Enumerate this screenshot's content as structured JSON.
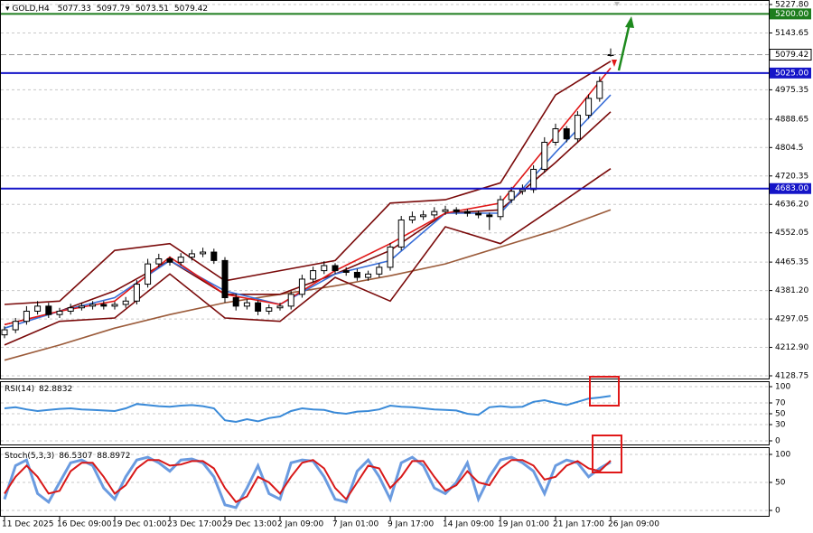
{
  "chart_data": {
    "type": "candlestick",
    "header": {
      "symbol": "GOLD,H4",
      "open": 5077.33,
      "high": 5097.79,
      "low": 5073.51,
      "close": 5079.42
    },
    "categories": [
      "11 Dec 2025",
      null,
      null,
      null,
      null,
      "16 Dec 09:00",
      null,
      null,
      null,
      null,
      "19 Dec 01:00",
      null,
      null,
      null,
      null,
      "23 Dec 17:00",
      null,
      null,
      null,
      null,
      "29 Dec 13:00",
      null,
      null,
      null,
      null,
      "2 Jan 09:00",
      null,
      null,
      null,
      null,
      "7 Jan 01:00",
      null,
      null,
      null,
      null,
      "9 Jan 17:00",
      null,
      null,
      null,
      null,
      "14 Jan 09:00",
      null,
      null,
      null,
      null,
      "19 Jan 01:00",
      null,
      null,
      null,
      null,
      "21 Jan 17:00",
      null,
      null,
      null,
      null,
      "26 Jan 09:00"
    ],
    "close": [
      4265,
      4290,
      4320,
      4335,
      4310,
      4320,
      4330,
      4335,
      4340,
      4335,
      4340,
      4350,
      4400,
      4460,
      4475,
      4465,
      4480,
      4490,
      4495,
      4470,
      4360,
      4335,
      4345,
      4320,
      4330,
      4335,
      4370,
      4415,
      4440,
      4455,
      4440,
      4435,
      4420,
      4430,
      4450,
      4510,
      4590,
      4600,
      4605,
      4615,
      4620,
      4615,
      4610,
      4605,
      4600,
      4650,
      4675,
      4680,
      4740,
      4820,
      4860,
      4830,
      4900,
      4950,
      5000,
      5079.42
    ],
    "open": [
      4250,
      4265,
      4290,
      4320,
      4335,
      4310,
      4320,
      4330,
      4335,
      4340,
      4335,
      4340,
      4350,
      4400,
      4460,
      4475,
      4465,
      4480,
      4490,
      4495,
      4470,
      4360,
      4335,
      4345,
      4320,
      4330,
      4335,
      4370,
      4415,
      4440,
      4455,
      4440,
      4435,
      4420,
      4430,
      4450,
      4510,
      4590,
      4600,
      4605,
      4615,
      4620,
      4615,
      4610,
      4605,
      4600,
      4650,
      4675,
      4680,
      4740,
      4820,
      4860,
      4830,
      4900,
      4950,
      5077.33
    ],
    "high": [
      4275,
      4300,
      4335,
      4350,
      4345,
      4330,
      4342,
      4345,
      4350,
      4350,
      4348,
      4362,
      4412,
      4475,
      4490,
      4482,
      4492,
      4502,
      4508,
      4505,
      4480,
      4372,
      4355,
      4352,
      4340,
      4345,
      4380,
      4428,
      4452,
      4468,
      4462,
      4450,
      4445,
      4440,
      4462,
      4522,
      4602,
      4615,
      4618,
      4628,
      4632,
      4628,
      4622,
      4618,
      4612,
      4662,
      4688,
      4695,
      4752,
      4835,
      4875,
      4868,
      4912,
      4962,
      5015,
      5097.79
    ],
    "low": [
      4240,
      4255,
      4280,
      4310,
      4300,
      4300,
      4310,
      4322,
      4325,
      4325,
      4325,
      4330,
      4340,
      4390,
      4450,
      4455,
      4455,
      4470,
      4480,
      4460,
      4345,
      4322,
      4325,
      4308,
      4310,
      4322,
      4325,
      4360,
      4405,
      4430,
      4430,
      4425,
      4410,
      4410,
      4420,
      4440,
      4500,
      4580,
      4590,
      4595,
      4605,
      4605,
      4600,
      4595,
      4560,
      4590,
      4640,
      4665,
      4670,
      4730,
      4810,
      4820,
      4820,
      4890,
      4940,
      5073.51
    ],
    "colors": {
      "up": "#ffffff",
      "down": "#000000",
      "wick": "#000000"
    },
    "ylim": [
      4128.75,
      5227.8
    ],
    "yticks": [
      {
        "value": 5227.8,
        "label": "5227.80"
      },
      5143.65,
      4975.35,
      4888.65,
      4804.5,
      4720.35,
      {
        "value": 4636.2,
        "label": "4636.20"
      },
      4552.05,
      4465.35,
      {
        "value": 4381.2,
        "label": "4381.20"
      },
      4297.05,
      {
        "value": 4212.9,
        "label": "4212.90"
      },
      4128.75
    ],
    "grid": true,
    "levels": [
      {
        "value": 5200,
        "label": "5200.00",
        "color": "#1e7d1e"
      },
      {
        "value": 5025,
        "label": "5025.00",
        "color": "#1515c8"
      },
      {
        "value": 4683,
        "label": "4683.00",
        "color": "#1515c8"
      }
    ],
    "indicators": {
      "x": [
        0,
        5,
        10,
        15,
        20,
        25,
        30,
        35,
        40,
        45,
        50,
        55
      ],
      "series": [
        {
          "color": "#9b5b3a",
          "values": [
            4175,
            4220,
            4270,
            4310,
            4345,
            4370,
            4395,
            4425,
            4460,
            4510,
            4560,
            4620
          ]
        },
        {
          "color": "#7a0a0a",
          "values": [
            4340,
            4350,
            4500,
            4520,
            4410,
            4440,
            4470,
            4640,
            4650,
            4700,
            4960,
            5060
          ]
        },
        {
          "color": "#7a0a0a",
          "values": [
            4220,
            4290,
            4300,
            4430,
            4300,
            4290,
            4420,
            4350,
            4570,
            4520,
            4630,
            4742
          ]
        },
        {
          "color": "#7a0a0a",
          "values": [
            4280,
            4320,
            4380,
            4470,
            4370,
            4370,
            4430,
            4500,
            4610,
            4620,
            4760,
            4910
          ]
        },
        {
          "color": "#3a6fd8",
          "values": [
            4270,
            4320,
            4360,
            4470,
            4380,
            4340,
            4430,
            4470,
            4610,
            4610,
            4790,
            4960
          ]
        },
        {
          "color": "#e01818",
          "values": [
            4280,
            4320,
            4350,
            4480,
            4370,
            4340,
            4440,
            4520,
            4610,
            4640,
            4840,
            5040
          ]
        }
      ]
    },
    "rsi": {
      "name": "RSI(14)",
      "color": "#3a8ad8",
      "values": [
        60,
        62,
        58,
        55,
        57,
        59,
        60,
        58,
        57,
        56,
        55,
        60,
        68,
        66,
        64,
        63,
        65,
        66,
        64,
        60,
        38,
        35,
        40,
        36,
        42,
        45,
        55,
        60,
        58,
        57,
        52,
        50,
        54,
        55,
        58,
        65,
        63,
        62,
        60,
        58,
        57,
        56,
        50,
        48,
        62,
        64,
        62,
        63,
        72,
        75,
        70,
        66,
        72,
        78,
        80,
        82.8832
      ],
      "ylim": [
        0,
        100
      ],
      "yticks": [
        0,
        30,
        50,
        70,
        100
      ]
    },
    "stoch": {
      "name": "Stoch(5,3,3)",
      "series": [
        {
          "color": "#6a9be0",
          "values": [
            20,
            80,
            90,
            30,
            15,
            50,
            85,
            90,
            80,
            40,
            20,
            60,
            90,
            95,
            85,
            70,
            90,
            92,
            85,
            60,
            10,
            5,
            40,
            80,
            30,
            20,
            85,
            90,
            88,
            60,
            20,
            15,
            70,
            90,
            60,
            20,
            85,
            95,
            80,
            40,
            30,
            50,
            85,
            20,
            60,
            90,
            95,
            85,
            70,
            30,
            80,
            90,
            85,
            60,
            75,
            86.5307
          ]
        },
        {
          "color": "#d81818",
          "values": [
            30,
            60,
            80,
            60,
            30,
            35,
            70,
            85,
            85,
            60,
            30,
            45,
            75,
            90,
            90,
            80,
            82,
            88,
            88,
            75,
            40,
            15,
            25,
            60,
            50,
            30,
            60,
            85,
            90,
            75,
            40,
            20,
            50,
            80,
            75,
            40,
            60,
            88,
            88,
            60,
            35,
            45,
            70,
            50,
            45,
            75,
            90,
            90,
            80,
            55,
            60,
            80,
            88,
            75,
            70,
            88.8972
          ]
        }
      ],
      "ylim": [
        0,
        100
      ],
      "yticks": [
        0,
        50,
        100
      ]
    }
  }
}
